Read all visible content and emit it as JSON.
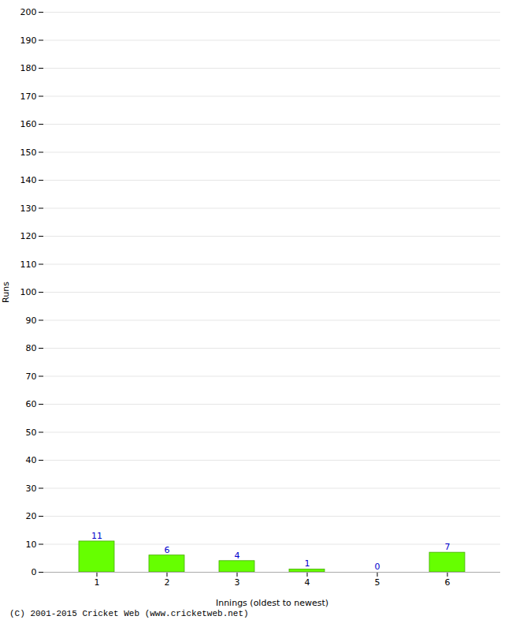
{
  "chart_data": {
    "type": "bar",
    "categories": [
      "1",
      "2",
      "3",
      "4",
      "5",
      "6"
    ],
    "values": [
      11,
      6,
      4,
      1,
      0,
      7
    ],
    "color": "#66ff00",
    "xlabel": "Innings (oldest to newest)",
    "ylabel": "Runs",
    "ylim": [
      0,
      200
    ],
    "yticks": [
      0,
      10,
      20,
      30,
      40,
      50,
      60,
      70,
      80,
      90,
      100,
      110,
      120,
      130,
      140,
      150,
      160,
      170,
      180,
      190,
      200
    ],
    "grid": true,
    "data_labels": true,
    "annotations": [
      "(C) 2001-2015 Cricket Web (www.cricketweb.net)"
    ]
  }
}
